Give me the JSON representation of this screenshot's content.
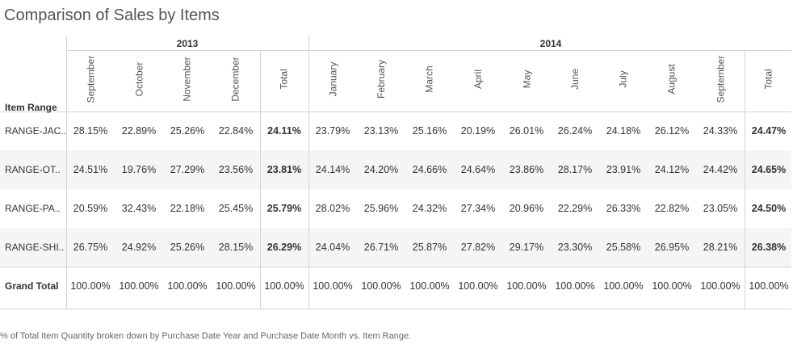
{
  "title": "Comparison of Sales by Items",
  "footer": "% of Total Item Quantity broken down by Purchase Date Year and Purchase Date Month vs. Item Range.",
  "row_header": "Item Range",
  "colors": {
    "band": "#f5f5f5",
    "grid": "#d4d4d4",
    "text": "#333333"
  },
  "chart_data": {
    "type": "table",
    "title": "Comparison of Sales by Items",
    "years": [
      {
        "year": "2013",
        "months": [
          "September",
          "October",
          "November",
          "December"
        ],
        "total_label": "Total"
      },
      {
        "year": "2014",
        "months": [
          "January",
          "February",
          "March",
          "April",
          "May",
          "June",
          "July",
          "August",
          "September"
        ],
        "total_label": "Total"
      }
    ],
    "rows": [
      {
        "label": "RANGE-JAC..",
        "values_2013": [
          "28.15%",
          "22.89%",
          "25.26%",
          "22.84%"
        ],
        "total_2013": "24.11%",
        "values_2014": [
          "23.79%",
          "23.13%",
          "25.16%",
          "20.19%",
          "26.01%",
          "26.24%",
          "24.18%",
          "26.12%",
          "24.33%"
        ],
        "total_2014": "24.47%"
      },
      {
        "label": "RANGE-OT..",
        "values_2013": [
          "24.51%",
          "19.76%",
          "27.29%",
          "23.56%"
        ],
        "total_2013": "23.81%",
        "values_2014": [
          "24.14%",
          "24.20%",
          "24.66%",
          "24.64%",
          "23.86%",
          "28.17%",
          "23.91%",
          "24.12%",
          "24.42%"
        ],
        "total_2014": "24.65%"
      },
      {
        "label": "RANGE-PA..",
        "values_2013": [
          "20.59%",
          "32.43%",
          "22.18%",
          "25.45%"
        ],
        "total_2013": "25.79%",
        "values_2014": [
          "28.02%",
          "25.96%",
          "24.32%",
          "27.34%",
          "20.96%",
          "22.29%",
          "26.33%",
          "22.82%",
          "23.05%"
        ],
        "total_2014": "24.50%"
      },
      {
        "label": "RANGE-SHI..",
        "values_2013": [
          "26.75%",
          "24.92%",
          "25.26%",
          "28.15%"
        ],
        "total_2013": "26.29%",
        "values_2014": [
          "24.04%",
          "26.71%",
          "25.87%",
          "27.82%",
          "29.17%",
          "23.30%",
          "25.58%",
          "26.95%",
          "28.21%"
        ],
        "total_2014": "26.38%"
      }
    ],
    "grand_total": {
      "label": "Grand Total",
      "values_2013": [
        "100.00%",
        "100.00%",
        "100.00%",
        "100.00%"
      ],
      "total_2013": "100.00%",
      "values_2014": [
        "100.00%",
        "100.00%",
        "100.00%",
        "100.00%",
        "100.00%",
        "100.00%",
        "100.00%",
        "100.00%",
        "100.00%"
      ],
      "total_2014": "100.00%"
    }
  }
}
